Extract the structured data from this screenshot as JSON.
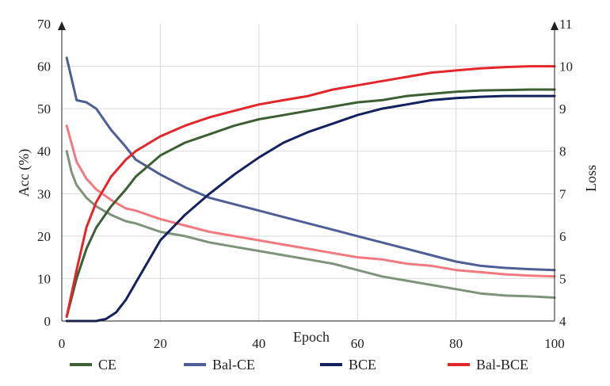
{
  "chart_data": {
    "type": "line",
    "title": "",
    "xlabel": "Epoch",
    "ylabel_left": "Acc (%)",
    "ylabel_right": "Loss",
    "xlim": [
      0,
      100
    ],
    "ylim_left": [
      0,
      70
    ],
    "ylim_right": [
      4,
      11
    ],
    "x_ticks": [
      "0",
      "20",
      "40",
      "60",
      "80",
      "100"
    ],
    "y_left_ticks": [
      "0",
      "10",
      "20",
      "30",
      "40",
      "50",
      "60",
      "70"
    ],
    "y_right_ticks": [
      "4",
      "5",
      "6",
      "7",
      "8",
      "9",
      "10",
      "11"
    ],
    "grid": true,
    "legend_position": "bottom",
    "series": [
      {
        "name": "CE",
        "axis": "left",
        "metric": "accuracy",
        "color": "#3e5e34",
        "x": [
          1,
          3,
          5,
          7,
          10,
          13,
          15,
          20,
          25,
          30,
          35,
          40,
          45,
          50,
          55,
          60,
          65,
          70,
          75,
          80,
          85,
          90,
          95,
          100
        ],
        "values": [
          1,
          10,
          17,
          22,
          27,
          31,
          34,
          39,
          42,
          44,
          46,
          47.5,
          48.5,
          49.5,
          50.5,
          51.5,
          52,
          53,
          53.5,
          54,
          54.3,
          54.4,
          54.5,
          54.5
        ]
      },
      {
        "name": "Bal-CE",
        "axis": "right",
        "metric": "loss",
        "color": "#4f5e94",
        "x": [
          1,
          3,
          5,
          7,
          10,
          13,
          15,
          20,
          25,
          30,
          35,
          40,
          45,
          50,
          55,
          60,
          65,
          70,
          75,
          80,
          85,
          90,
          95,
          100
        ],
        "values": [
          10.2,
          9.2,
          9.15,
          9.0,
          8.5,
          8.1,
          7.8,
          7.45,
          7.15,
          6.9,
          6.75,
          6.6,
          6.45,
          6.3,
          6.15,
          6.0,
          5.85,
          5.7,
          5.55,
          5.4,
          5.3,
          5.25,
          5.22,
          5.2
        ]
      },
      {
        "name": "BCE",
        "axis": "left",
        "metric": "accuracy",
        "color": "#15205e",
        "x": [
          1,
          4,
          7,
          9,
          11,
          13,
          15,
          18,
          20,
          25,
          30,
          35,
          40,
          45,
          50,
          55,
          60,
          65,
          70,
          75,
          80,
          85,
          90,
          95,
          100
        ],
        "values": [
          0,
          0,
          0,
          0.5,
          2,
          5,
          9,
          15,
          19,
          25,
          30,
          34.5,
          38.5,
          42,
          44.5,
          46.5,
          48.5,
          50,
          51,
          52,
          52.5,
          52.8,
          53,
          53,
          53
        ]
      },
      {
        "name": "Bal-BCE",
        "axis": "left",
        "metric": "accuracy",
        "color": "#e3262a",
        "x": [
          1,
          3,
          5,
          7,
          10,
          13,
          15,
          20,
          25,
          30,
          35,
          40,
          45,
          50,
          55,
          60,
          65,
          70,
          75,
          80,
          85,
          90,
          95,
          100
        ],
        "values": [
          1,
          12,
          22,
          28,
          34,
          38,
          40,
          43.5,
          46,
          48,
          49.5,
          51,
          52,
          53,
          54.5,
          55.5,
          56.5,
          57.5,
          58.5,
          59,
          59.5,
          59.8,
          60,
          60
        ]
      },
      {
        "name": "CE loss",
        "axis": "right",
        "metric": "loss",
        "legend": false,
        "color": "#7f937c",
        "x": [
          1,
          2,
          3,
          5,
          7,
          10,
          13,
          15,
          20,
          25,
          30,
          35,
          40,
          45,
          50,
          55,
          60,
          65,
          70,
          75,
          80,
          85,
          90,
          95,
          100
        ],
        "values": [
          8.0,
          7.5,
          7.2,
          6.9,
          6.7,
          6.5,
          6.35,
          6.3,
          6.1,
          6.0,
          5.85,
          5.75,
          5.65,
          5.55,
          5.45,
          5.35,
          5.2,
          5.05,
          4.95,
          4.85,
          4.75,
          4.65,
          4.6,
          4.58,
          4.55
        ]
      },
      {
        "name": "Bal-BCE loss",
        "axis": "right",
        "metric": "loss",
        "legend": false,
        "color": "#f07a80",
        "x": [
          1,
          3,
          5,
          7,
          10,
          13,
          15,
          20,
          25,
          30,
          35,
          40,
          45,
          50,
          55,
          60,
          65,
          70,
          75,
          80,
          85,
          90,
          95,
          100
        ],
        "values": [
          8.6,
          7.75,
          7.35,
          7.1,
          6.85,
          6.65,
          6.6,
          6.4,
          6.25,
          6.1,
          6.0,
          5.9,
          5.8,
          5.7,
          5.6,
          5.5,
          5.45,
          5.35,
          5.3,
          5.2,
          5.15,
          5.1,
          5.07,
          5.05
        ]
      }
    ]
  }
}
